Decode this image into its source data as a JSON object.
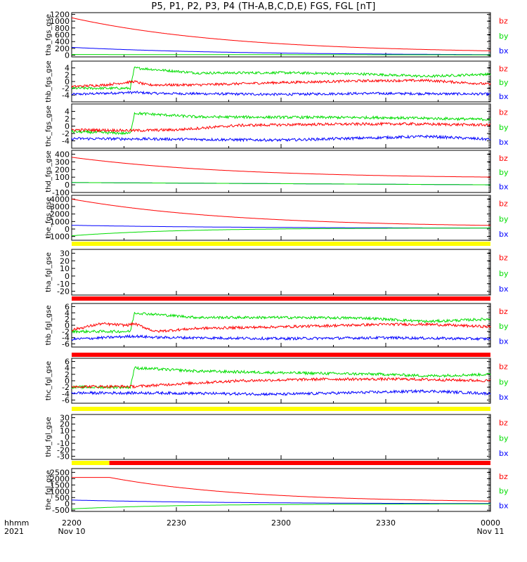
{
  "title": "P5, P1, P2, P3, P4 (TH-A,B,C,D,E) FGS, FGL [nT]",
  "colors": {
    "bz": "#ff0000",
    "by": "#00dd00",
    "bx": "#0000ff",
    "bar_yellow": "#ffff00",
    "bar_red": "#ff0000",
    "frame": "#000000"
  },
  "legend": [
    "bz",
    "by",
    "bx"
  ],
  "time_axis": {
    "row1_label": "hhmm",
    "row2_label": "2021",
    "ticks": [
      {
        "hhmm": "2200",
        "date": "Nov 10"
      },
      {
        "hhmm": "2230",
        "date": ""
      },
      {
        "hhmm": "2300",
        "date": ""
      },
      {
        "hhmm": "2330",
        "date": ""
      },
      {
        "hhmm": "0000",
        "date": "Nov 11"
      }
    ]
  },
  "chart_data": [
    {
      "type": "line",
      "ylabel": "tha_fgs_gse",
      "ylim": [
        -50,
        1250
      ],
      "yticks": [
        0,
        200,
        400,
        600,
        800,
        1000,
        1200
      ],
      "series": [
        {
          "name": "bz",
          "kind": "decay",
          "start": 1100,
          "end": 50
        },
        {
          "name": "by",
          "kind": "ramp",
          "start": 20,
          "end": 10
        },
        {
          "name": "bx",
          "kind": "decay",
          "start": 230,
          "end": 0
        }
      ]
    },
    {
      "type": "line",
      "ylabel": "thb_fgs_gse",
      "ylim": [
        -6,
        6
      ],
      "yticks": [
        -4,
        -2,
        0,
        2,
        4
      ],
      "series": [
        {
          "name": "bz",
          "kind": "noisy",
          "points": [
            [
              0,
              -1.5
            ],
            [
              0.08,
              -1
            ],
            [
              0.15,
              0
            ],
            [
              0.18,
              -1
            ],
            [
              0.3,
              -1
            ],
            [
              0.5,
              -0.3
            ],
            [
              0.7,
              0.2
            ],
            [
              0.85,
              0.3
            ],
            [
              1,
              -0.8
            ]
          ]
        },
        {
          "name": "by",
          "kind": "noisy",
          "points": [
            [
              0,
              -2
            ],
            [
              0.14,
              -2
            ],
            [
              0.15,
              4
            ],
            [
              0.3,
              2.5
            ],
            [
              0.5,
              2.6
            ],
            [
              0.7,
              2.2
            ],
            [
              0.85,
              1.5
            ],
            [
              1,
              2.2
            ]
          ]
        },
        {
          "name": "bx",
          "kind": "noisy",
          "points": [
            [
              0,
              -3.8
            ],
            [
              0.15,
              -3.2
            ],
            [
              0.2,
              -3.5
            ],
            [
              0.5,
              -3.8
            ],
            [
              0.7,
              -3.5
            ],
            [
              0.85,
              -3.6
            ],
            [
              1,
              -3.7
            ]
          ]
        }
      ]
    },
    {
      "type": "line",
      "ylabel": "thc_fgs_gse",
      "ylim": [
        -6,
        6
      ],
      "yticks": [
        -4,
        -2,
        0,
        2,
        4
      ],
      "series": [
        {
          "name": "bz",
          "kind": "noisy",
          "points": [
            [
              0,
              -1
            ],
            [
              0.15,
              -1.2
            ],
            [
              0.25,
              -1
            ],
            [
              0.4,
              0.2
            ],
            [
              0.6,
              0.5
            ],
            [
              0.8,
              0.6
            ],
            [
              1,
              0.3
            ]
          ]
        },
        {
          "name": "by",
          "kind": "noisy",
          "points": [
            [
              0,
              -1.5
            ],
            [
              0.14,
              -2
            ],
            [
              0.15,
              3.5
            ],
            [
              0.3,
              2.5
            ],
            [
              0.5,
              2.4
            ],
            [
              0.75,
              2.3
            ],
            [
              1,
              1.8
            ]
          ]
        },
        {
          "name": "bx",
          "kind": "noisy",
          "points": [
            [
              0,
              -3.4
            ],
            [
              0.2,
              -3.5
            ],
            [
              0.5,
              -3.8
            ],
            [
              0.85,
              -2.8
            ],
            [
              1,
              -3.6
            ]
          ]
        }
      ]
    },
    {
      "type": "line",
      "ylabel": "thd_fgs_gse",
      "ylim": [
        -100,
        450
      ],
      "yticks": [
        -100,
        0,
        100,
        200,
        300,
        400
      ],
      "series": [
        {
          "name": "bz",
          "kind": "decay",
          "start": 360,
          "end": 80
        },
        {
          "name": "by",
          "kind": "ramp",
          "start": 30,
          "end": 0
        },
        {
          "name": "bx",
          "kind": "ramp",
          "start": 30,
          "end": 0
        }
      ]
    },
    {
      "type": "line",
      "ylabel": "the_fgs_gse",
      "ylim": [
        -1500,
        4500
      ],
      "yticks": [
        -1000,
        0,
        1000,
        2000,
        3000,
        4000
      ],
      "series": [
        {
          "name": "bz",
          "kind": "decay",
          "start": 4000,
          "end": 200
        },
        {
          "name": "by",
          "kind": "rise",
          "start": -900,
          "end": 150
        },
        {
          "name": "bx",
          "kind": "decay",
          "start": 500,
          "end": 100
        }
      ]
    },
    {
      "type": "line",
      "ylabel": "tha_fgl_gse",
      "ylim": [
        -25,
        35
      ],
      "yticks": [
        -20,
        -10,
        0,
        10,
        20,
        30
      ],
      "series": []
    },
    {
      "type": "line",
      "ylabel": "thb_fgl_gse",
      "ylim": [
        -7,
        7
      ],
      "yticks": [
        -6,
        -4,
        -2,
        0,
        2,
        4,
        6
      ],
      "series": [
        {
          "name": "bz",
          "kind": "noisy",
          "points": [
            [
              0,
              -1.5
            ],
            [
              0.07,
              0.5
            ],
            [
              0.13,
              0
            ],
            [
              0.15,
              0.5
            ],
            [
              0.2,
              -2
            ],
            [
              0.3,
              -1
            ],
            [
              0.5,
              -0.5
            ],
            [
              0.75,
              0.3
            ],
            [
              0.85,
              0.3
            ],
            [
              1,
              -0.5
            ]
          ]
        },
        {
          "name": "by",
          "kind": "noisy",
          "points": [
            [
              0,
              -2
            ],
            [
              0.14,
              -2
            ],
            [
              0.15,
              4
            ],
            [
              0.3,
              2.5
            ],
            [
              0.5,
              2.5
            ],
            [
              0.7,
              2.3
            ],
            [
              0.85,
              1.2
            ],
            [
              1,
              2
            ]
          ]
        },
        {
          "name": "bx",
          "kind": "noisy",
          "points": [
            [
              0,
              -4.5
            ],
            [
              0.15,
              -3.5
            ],
            [
              0.2,
              -3.9
            ],
            [
              0.5,
              -4.3
            ],
            [
              0.75,
              -4
            ],
            [
              1,
              -4.4
            ]
          ]
        }
      ]
    },
    {
      "type": "line",
      "ylabel": "thc_fgl_gse",
      "ylim": [
        -7,
        7
      ],
      "yticks": [
        -6,
        -4,
        -2,
        0,
        2,
        4,
        6
      ],
      "series": [
        {
          "name": "bz",
          "kind": "noisy",
          "points": [
            [
              0,
              -1.8
            ],
            [
              0.15,
              -1.8
            ],
            [
              0.25,
              -1
            ],
            [
              0.4,
              0
            ],
            [
              0.6,
              0.5
            ],
            [
              0.8,
              0.5
            ],
            [
              1,
              0
            ]
          ]
        },
        {
          "name": "by",
          "kind": "noisy",
          "points": [
            [
              0,
              -2
            ],
            [
              0.14,
              -2
            ],
            [
              0.15,
              4
            ],
            [
              0.3,
              3
            ],
            [
              0.5,
              2.5
            ],
            [
              0.75,
              2
            ],
            [
              0.85,
              1.5
            ],
            [
              1,
              2
            ]
          ]
        },
        {
          "name": "bx",
          "kind": "noisy",
          "points": [
            [
              0,
              -3.8
            ],
            [
              0.2,
              -3.8
            ],
            [
              0.5,
              -4.2
            ],
            [
              0.85,
              -3.2
            ],
            [
              1,
              -4
            ]
          ]
        }
      ]
    },
    {
      "type": "line",
      "ylabel": "thd_fgl_gse",
      "ylim": [
        -35,
        35
      ],
      "yticks": [
        -30,
        -20,
        -10,
        0,
        10,
        20,
        30
      ],
      "series": []
    },
    {
      "type": "line",
      "ylabel": "the_fgl_gse",
      "ylim": [
        -600,
        2800
      ],
      "yticks": [
        -500,
        0,
        500,
        1000,
        1500,
        2000,
        2500
      ],
      "series": [
        {
          "name": "bz",
          "kind": "plateau_decay",
          "start": 2100,
          "plateau_end": 0.09,
          "end": 100
        },
        {
          "name": "by",
          "kind": "rise",
          "start": -400,
          "end": 0
        },
        {
          "name": "bx",
          "kind": "decay",
          "start": 300,
          "end": 0
        }
      ]
    }
  ],
  "status_bars": [
    {
      "after_panel": 4,
      "segments": [
        {
          "from": 0,
          "to": 1,
          "color": "yellow"
        }
      ]
    },
    {
      "after_panel": 5,
      "segments": [
        {
          "from": 0,
          "to": 1,
          "color": "red"
        }
      ]
    },
    {
      "after_panel": 6,
      "segments": [
        {
          "from": 0,
          "to": 1,
          "color": "red"
        }
      ]
    },
    {
      "after_panel": 7,
      "segments": [
        {
          "from": 0,
          "to": 1,
          "color": "yellow"
        }
      ]
    },
    {
      "after_panel": 8,
      "segments": [
        {
          "from": 0,
          "to": 0.09,
          "color": "yellow"
        },
        {
          "from": 0.09,
          "to": 1,
          "color": "red"
        }
      ]
    }
  ]
}
